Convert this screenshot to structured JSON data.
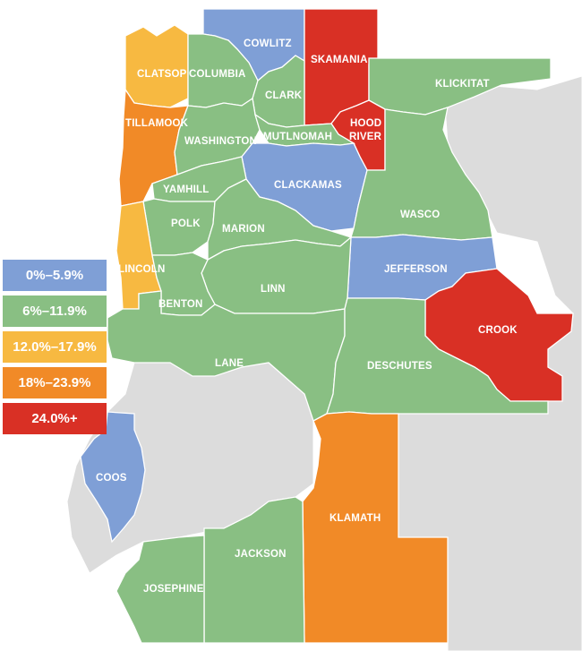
{
  "colors": {
    "blue": "#7f9fd6",
    "green": "#89bf83",
    "yellow": "#f7b941",
    "orange": "#f18a27",
    "red": "#d93025",
    "gray": "#dcdcdc"
  },
  "legend": [
    {
      "label": "0%–5.9%",
      "color": "#7f9fd6"
    },
    {
      "label": "6%–11.9%",
      "color": "#89bf83"
    },
    {
      "label": "12.0%–17.9%",
      "color": "#f7b941"
    },
    {
      "label": "18%–23.9%",
      "color": "#f18a27"
    },
    {
      "label": "24.0%+",
      "color": "#d93025"
    }
  ],
  "counties": {
    "cowlitz": "COWLITZ",
    "skamania": "SKAMANIA",
    "clatsop": "CLATSOP",
    "columbia": "COLUMBIA",
    "clark": "CLARK",
    "klickitat": "KLICKITAT",
    "tillamook": "TILLAMOOK",
    "hood_river_1": "HOOD",
    "hood_river_2": "RIVER",
    "washington": "WASHINGTON",
    "multnomah": "MUTLNOMAH",
    "yamhill": "YAMHILL",
    "clackamas": "CLACKAMAS",
    "polk": "POLK",
    "marion": "MARION",
    "wasco": "WASCO",
    "lincoln": "LINCOLN",
    "jefferson": "JEFFERSON",
    "linn": "LINN",
    "benton": "BENTON",
    "crook": "CROOK",
    "lane": "LANE",
    "deschutes": "DESCHUTES",
    "coos": "COOS",
    "klamath": "KLAMATH",
    "jackson": "JACKSON",
    "josephine": "JOSEPHINE"
  }
}
